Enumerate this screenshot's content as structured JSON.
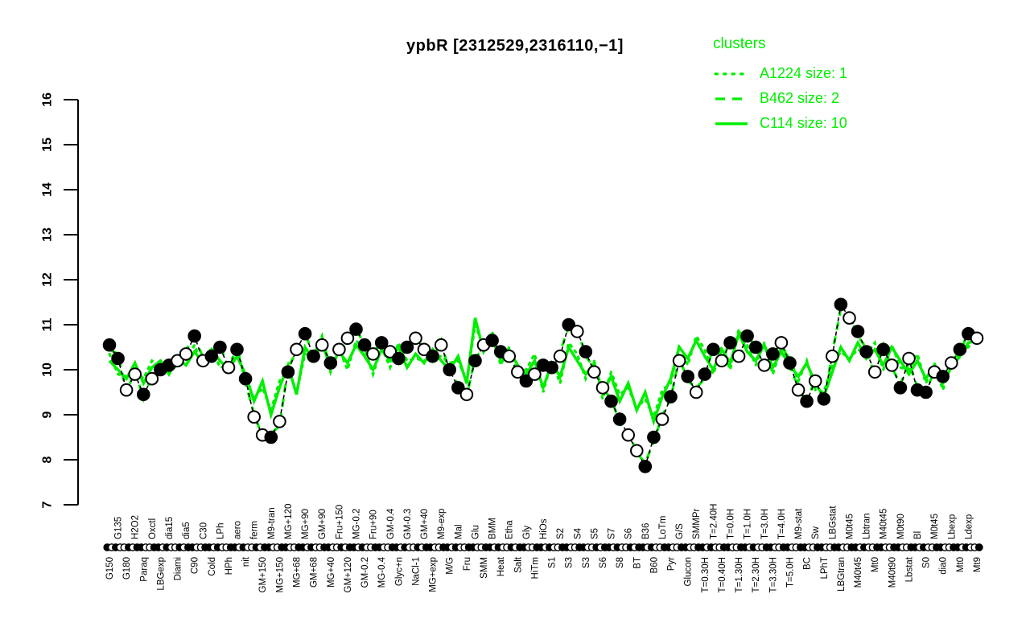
{
  "title": "ypbR [2312529,2316110,−1]",
  "colors": {
    "cluster_green": "#00EE00",
    "series_black": "#000000",
    "background": "#FFFFFF"
  },
  "legend": {
    "header": "clusters",
    "items": [
      {
        "label": "A1224 size: 1",
        "style": "dotted"
      },
      {
        "label": "B462 size: 2",
        "style": "dashed"
      },
      {
        "label": "C114 size: 10",
        "style": "solid"
      }
    ]
  },
  "chart_data": {
    "type": "line",
    "title": "ypbR [2312529,2316110,−1]",
    "xlabel": "",
    "ylabel": "",
    "grid": false,
    "legend_position": "top-right",
    "y_axis": {
      "min": 7,
      "max": 16,
      "ticks": [
        7,
        8,
        9,
        10,
        11,
        12,
        13,
        14,
        15,
        16
      ]
    },
    "x_label_rotation": -90,
    "x_label_alternate": "first-below-then-above",
    "categories": [
      "G150",
      "G135",
      "G180",
      "H2O2",
      "Paraq",
      "Oxctl",
      "LBGexp",
      "dia15",
      "Diami",
      "dia5",
      "C90",
      "C30",
      "Cold",
      "LPh",
      "HPh",
      "aero",
      "nit",
      "ferm",
      "GM+150",
      "M9-tran",
      "MG+150",
      "MG+120",
      "MG+68",
      "MG+90",
      "GM+68",
      "GM+90",
      "MG+40",
      "Fru+150",
      "GM+120",
      "MG-0.2",
      "GM-0.2",
      "Fru+90",
      "MG-0.4",
      "GM-0.4",
      "Glyc+n",
      "GM-0.3",
      "NaCl-1",
      "GM+40",
      "MG+exp",
      "M9-exp",
      "M/G",
      "Mal",
      "Fru",
      "Glu",
      "SMM",
      "BMM",
      "Heat",
      "Etha",
      "Salt",
      "Gly",
      "HiTm",
      "HiOs",
      "S1",
      "S2",
      "S3",
      "S4",
      "S3",
      "S5",
      "S6",
      "S7",
      "S8",
      "S6",
      "BT",
      "B36",
      "B60",
      "LoTm",
      "Pyr",
      "G/S",
      "Glucon",
      "SMMPr",
      "T=0.30H",
      "T=2.40H",
      "T=0.40H",
      "T=0.0H",
      "T=1.30H",
      "T=1.0H",
      "T=2.30H",
      "T=3.0H",
      "T=3.30H",
      "T=4.0H",
      "T=5.0H",
      "M9-stat",
      "BC",
      "Sw",
      "LPhT",
      "LBGstat",
      "LBGtran",
      "M0t45",
      "M40t45",
      "Lbtran",
      "Mt0",
      "M40t45",
      "M40t90",
      "M0t90",
      "Lbstat",
      "Bl",
      "S0",
      "M0t45",
      "dia0",
      "Lbexp",
      "Mt0",
      "Ldexp",
      "Mt9"
    ],
    "series": [
      {
        "name": "ypbR expression profile",
        "style": "black dashed line with circle markers",
        "values": [
          10.55,
          10.25,
          9.55,
          9.9,
          9.45,
          9.8,
          10.0,
          10.1,
          10.2,
          10.35,
          10.75,
          10.2,
          10.3,
          10.5,
          10.05,
          10.45,
          9.8,
          8.95,
          8.55,
          8.5,
          8.85,
          9.95,
          10.45,
          10.8,
          10.3,
          10.55,
          10.15,
          10.45,
          10.7,
          10.9,
          10.55,
          10.35,
          10.6,
          10.4,
          10.25,
          10.5,
          10.7,
          10.45,
          10.3,
          10.55,
          10.0,
          9.6,
          9.45,
          10.2,
          10.55,
          10.65,
          10.4,
          10.3,
          9.95,
          9.75,
          9.9,
          10.1,
          10.05,
          10.3,
          11.0,
          10.85,
          10.4,
          9.95,
          9.6,
          9.3,
          8.9,
          8.55,
          8.2,
          7.85,
          8.5,
          8.9,
          9.4,
          10.2,
          9.85,
          9.5,
          9.9,
          10.45,
          10.2,
          10.6,
          10.3,
          10.75,
          10.5,
          10.1,
          10.35,
          10.6,
          10.15,
          9.55,
          9.3,
          9.75,
          9.35,
          10.3,
          11.45,
          11.15,
          10.85,
          10.4,
          9.95,
          10.45,
          10.1,
          9.6,
          10.25,
          9.55,
          9.5,
          9.95,
          9.85,
          10.15,
          10.45,
          10.8,
          10.7
        ],
        "marker_filled": [
          1,
          1,
          0,
          0,
          1,
          0,
          1,
          1,
          0,
          0,
          1,
          0,
          1,
          1,
          0,
          1,
          1,
          0,
          0,
          1,
          0,
          1,
          0,
          1,
          1,
          0,
          1,
          0,
          0,
          1,
          1,
          0,
          1,
          0,
          1,
          1,
          0,
          0,
          1,
          0,
          1,
          1,
          0,
          1,
          0,
          1,
          1,
          0,
          0,
          1,
          0,
          1,
          1,
          0,
          1,
          0,
          1,
          0,
          0,
          1,
          1,
          0,
          0,
          1,
          1,
          0,
          1,
          0,
          1,
          0,
          1,
          1,
          0,
          1,
          0,
          1,
          1,
          0,
          1,
          0,
          1,
          0,
          1,
          0,
          1,
          0,
          1,
          0,
          1,
          1,
          0,
          1,
          0,
          1,
          0,
          1,
          1,
          0,
          1,
          0,
          1,
          1,
          0
        ]
      },
      {
        "name": "A1224 size: 1",
        "style": "green dotted line",
        "values": [
          10.35,
          9.9,
          9.85,
          10.0,
          9.8,
          10.2,
          10.1,
          9.95,
          10.1,
          10.2,
          10.55,
          10.05,
          10.5,
          10.05,
          10.1,
          10.45,
          9.8,
          9.35,
          9.6,
          9.1,
          9.75,
          10.0,
          9.5,
          10.35,
          10.3,
          10.75,
          9.95,
          10.45,
          10.0,
          10.65,
          10.45,
          9.9,
          10.5,
          10.05,
          10.6,
          10.2,
          10.25,
          10.2,
          10.3,
          10.3,
          10.15,
          10.2,
          9.75,
          11.0,
          10.5,
          10.85,
          10.1,
          10.5,
          9.95,
          10.0,
          10.35,
          9.5,
          10.2,
          9.7,
          10.6,
          10.35,
          9.8,
          10.2,
          9.35,
          9.95,
          9.45,
          9.6,
          9.15,
          9.35,
          8.95,
          9.55,
          9.7,
          10.55,
          10.1,
          10.75,
          10.45,
          9.9,
          10.5,
          10.0,
          10.9,
          10.55,
          10.1,
          10.6,
          9.9,
          10.5,
          10.25,
          9.75,
          10.2,
          9.55,
          9.5,
          10.1,
          10.4,
          10.25,
          10.45,
          10.35,
          10.6,
          10.0,
          10.55,
          10.05,
          10.0,
          10.35,
          9.7,
          10.15,
          9.55,
          10.15,
          10.45,
          10.5,
          10.75
        ]
      },
      {
        "name": "B462 size: 2",
        "style": "green dashed line",
        "values": [
          10.45,
          10.35,
          9.5,
          9.98,
          9.35,
          9.9,
          9.95,
          10.18,
          10.1,
          10.45,
          10.7,
          10.28,
          10.2,
          10.6,
          9.95,
          10.53,
          9.7,
          9.03,
          8.5,
          8.58,
          8.75,
          10.05,
          10.4,
          10.88,
          10.2,
          10.65,
          10.1,
          10.53,
          10.6,
          11.0,
          10.45,
          10.43,
          10.55,
          10.48,
          10.15,
          10.6,
          10.65,
          10.53,
          10.2,
          10.65,
          9.9,
          9.7,
          9.4,
          10.28,
          10.45,
          10.75,
          10.35,
          10.38,
          9.85,
          9.85,
          9.85,
          10.18,
          9.95,
          10.4,
          10.95,
          10.93,
          10.3,
          10.05,
          9.55,
          9.38,
          8.8,
          8.65,
          8.15,
          7.93,
          8.4,
          8.98,
          9.35,
          10.28,
          9.75,
          9.6,
          9.8,
          10.53,
          10.15,
          10.68,
          10.2,
          10.83,
          10.45,
          10.18,
          10.25,
          10.68,
          10.05,
          9.63,
          9.25,
          9.83,
          9.25,
          10.38,
          11.35,
          11.23,
          10.75,
          10.48,
          9.85,
          10.55,
          10.05,
          9.68,
          10.15,
          9.63,
          9.45,
          10.03,
          9.75,
          10.23,
          10.35,
          10.88,
          10.65
        ]
      },
      {
        "name": "C114 size: 10",
        "style": "green solid line",
        "values": [
          10.2,
          10.0,
          9.8,
          10.15,
          9.7,
          10.05,
          10.2,
          9.9,
          10.25,
          10.1,
          10.4,
          10.15,
          10.45,
          10.2,
          10.0,
          10.3,
          9.9,
          9.3,
          9.75,
          9.0,
          9.6,
          10.1,
          9.45,
          10.5,
          10.2,
          10.6,
          10.05,
          10.4,
          10.15,
          10.55,
          10.3,
          10.0,
          10.45,
          10.2,
          10.5,
          10.05,
          10.35,
          10.15,
          10.45,
          10.2,
          10.0,
          10.3,
          9.7,
          11.15,
          10.4,
          10.7,
          10.2,
          10.45,
          10.1,
          9.9,
          10.2,
          9.6,
          10.15,
          9.85,
          10.5,
          10.2,
          9.9,
          10.15,
          9.5,
          9.85,
          9.3,
          9.7,
          9.1,
          9.5,
          8.85,
          9.4,
          9.8,
          10.5,
          10.25,
          10.65,
          10.3,
          10.0,
          10.45,
          10.15,
          10.8,
          10.4,
          10.2,
          10.55,
          10.05,
          10.4,
          10.1,
          9.85,
          10.15,
          9.7,
          9.4,
          9.95,
          10.5,
          10.2,
          10.6,
          10.25,
          10.45,
          10.1,
          10.5,
          10.2,
          9.9,
          10.2,
          9.8,
          10.1,
          9.7,
          10.05,
          10.3,
          10.6,
          10.65
        ]
      }
    ]
  }
}
